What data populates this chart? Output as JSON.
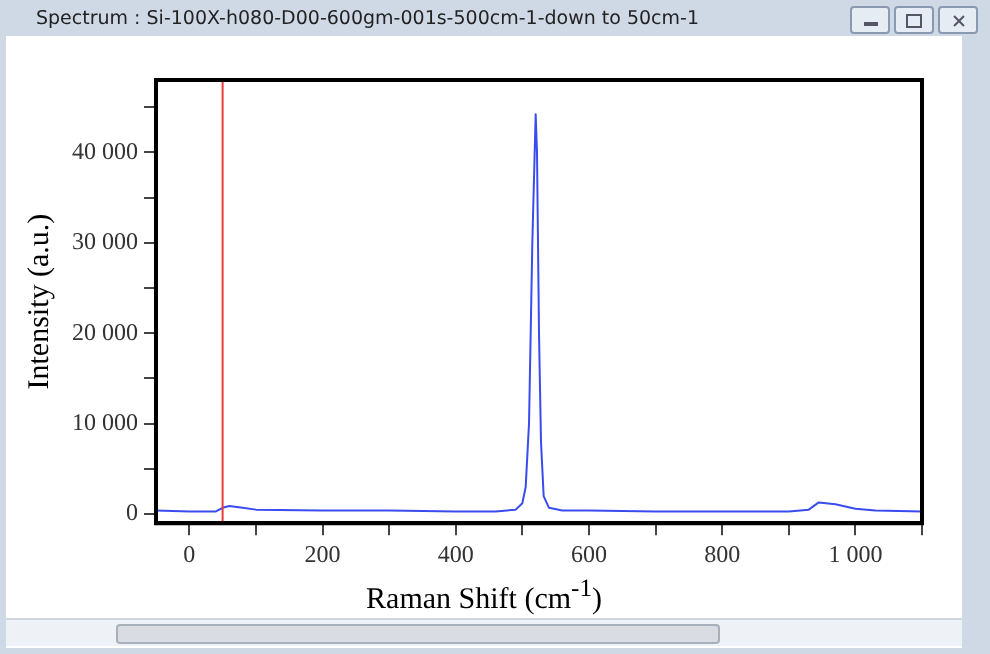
{
  "chart_data": {
    "type": "line",
    "title": "Spectrum : Si-100X-h080-D00-600gm-001s-500cm-1-down to 50cm-1",
    "xlabel": "Raman Shift (cm$^{-1}$)",
    "ylabel": "Intensity (a.u.)",
    "xlim": [
      -50,
      1100
    ],
    "ylim": [
      -1000,
      48000
    ],
    "xticks": [
      {
        "value": 0,
        "label": "0"
      },
      {
        "value": 100,
        "label": null
      },
      {
        "value": 200,
        "label": "200"
      },
      {
        "value": 300,
        "label": null
      },
      {
        "value": 400,
        "label": "400"
      },
      {
        "value": 500,
        "label": null
      },
      {
        "value": 600,
        "label": "600"
      },
      {
        "value": 700,
        "label": null
      },
      {
        "value": 800,
        "label": "800"
      },
      {
        "value": 900,
        "label": null
      },
      {
        "value": 1000,
        "label": "1 000"
      },
      {
        "value": 1100,
        "label": null
      }
    ],
    "yticks": [
      {
        "value": 0,
        "label": "0"
      },
      {
        "value": 5000,
        "label": null
      },
      {
        "value": 10000,
        "label": "10 000"
      },
      {
        "value": 15000,
        "label": null
      },
      {
        "value": 20000,
        "label": "20 000"
      },
      {
        "value": 25000,
        "label": null
      },
      {
        "value": 30000,
        "label": "30 000"
      },
      {
        "value": 35000,
        "label": null
      },
      {
        "value": 40000,
        "label": "40 000"
      },
      {
        "value": 45000,
        "label": null
      }
    ],
    "grid": false,
    "legend": false,
    "marker": "none",
    "line_style": "solid",
    "ref_lines": [
      {
        "axis": "x",
        "value": 50,
        "label": null,
        "color": "#e83a3a"
      }
    ],
    "series": [
      {
        "color": "#3a4cf0",
        "x": [
          -50,
          0,
          40,
          50,
          60,
          80,
          100,
          200,
          300,
          400,
          460,
          490,
          500,
          505,
          510,
          515,
          520,
          522,
          525,
          528,
          532,
          540,
          560,
          600,
          700,
          800,
          900,
          930,
          945,
          970,
          1000,
          1030,
          1100
        ],
        "values": [
          400,
          300,
          300,
          700,
          900,
          700,
          500,
          400,
          400,
          300,
          300,
          500,
          1200,
          3000,
          10000,
          30000,
          44200,
          40000,
          20000,
          8000,
          2000,
          700,
          400,
          400,
          300,
          300,
          300,
          500,
          1300,
          1100,
          600,
          400,
          300
        ]
      }
    ]
  }
}
